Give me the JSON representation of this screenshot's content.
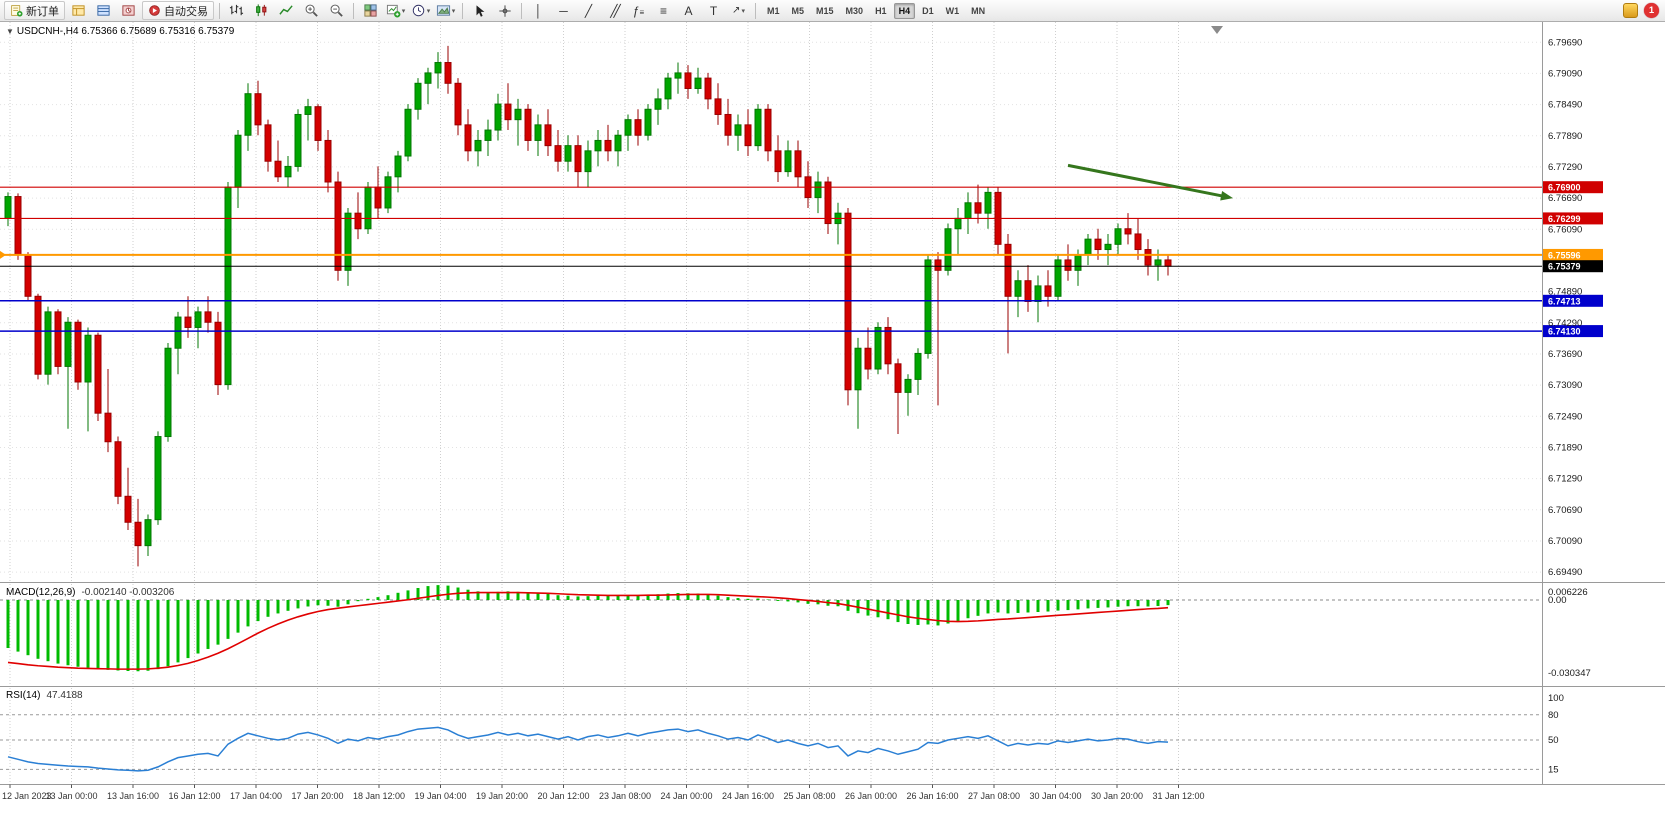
{
  "window": {
    "badge_count": "1"
  },
  "toolbar": {
    "new_order_label": "新订单",
    "auto_trading_label": "自动交易",
    "timeframes": [
      "M1",
      "M5",
      "M15",
      "M30",
      "H1",
      "H4",
      "D1",
      "W1",
      "MN"
    ],
    "active_timeframe": "H4"
  },
  "main_chart": {
    "symbol_header": "USDCNH-,H4  6.75366 6.75689 6.75316 6.75379"
  },
  "macd": {
    "label": "MACD(12,26,9)",
    "values": "-0.002140 -0.003206"
  },
  "rsi": {
    "label": "RSI(14)",
    "value": "47.4188"
  },
  "chart_data": {
    "type": "candlestick",
    "symbol": "USDCNH-,H4",
    "ohlc_header": {
      "open": "6.75366",
      "high": "6.75689",
      "low": "6.75316",
      "close": "6.75379"
    },
    "price_view": {
      "top": 6.8008,
      "bottom": 6.693
    },
    "colors": {
      "up": "#00a600",
      "up_stroke": "#047704",
      "down": "#d40000",
      "down_stroke": "#990000",
      "macd_hist": "#00bb00",
      "macd_signal": "#e00000",
      "rsi_line": "#2a7fd4",
      "level_red": "#d00000",
      "level_orange": "#ff9900",
      "level_blue": "#0000cc",
      "bid_black": "#000000",
      "arrow_green": "#35761d"
    },
    "price_axis_labels": [
      "6.79690",
      "6.79090",
      "6.78490",
      "6.77890",
      "6.77290",
      "6.76690",
      "6.76090",
      "6.74890",
      "6.74290",
      "6.73690",
      "6.73090",
      "6.72490",
      "6.71890",
      "6.71290",
      "6.70690",
      "6.70090",
      "6.69490"
    ],
    "time_axis_labels": [
      "12 Jan 2023",
      "13 Jan 00:00",
      "13 Jan 16:00",
      "16 Jan 12:00",
      "17 Jan 04:00",
      "17 Jan 20:00",
      "18 Jan 12:00",
      "19 Jan 04:00",
      "19 Jan 20:00",
      "20 Jan 12:00",
      "23 Jan 08:00",
      "24 Jan 00:00",
      "24 Jan 16:00",
      "25 Jan 08:00",
      "26 Jan 00:00",
      "26 Jan 16:00",
      "27 Jan 08:00",
      "30 Jan 04:00",
      "30 Jan 20:00",
      "31 Jan 12:00"
    ],
    "levels": [
      {
        "price": 6.769,
        "label": "6.76900",
        "color": "#d00000",
        "width": 1.2
      },
      {
        "price": 6.76299,
        "label": "6.76299",
        "color": "#d00000",
        "width": 1.2
      },
      {
        "price": 6.75596,
        "label": "6.75596",
        "color": "#ff9900",
        "width": 2,
        "left_marker": true
      },
      {
        "price": 6.75379,
        "label": "6.75379",
        "color": "#000000",
        "width": 1,
        "is_bid": true
      },
      {
        "price": 6.74713,
        "label": "6.74713",
        "color": "#0000cc",
        "width": 1.5
      },
      {
        "price": 6.7413,
        "label": "6.74130",
        "color": "#0000cc",
        "width": 1.5
      }
    ],
    "bid_price": 6.75379,
    "candles": [
      [
        6.763,
        6.768,
        6.7615,
        6.7672
      ],
      [
        6.7672,
        6.7678,
        6.755,
        6.756
      ],
      [
        6.756,
        6.7565,
        6.747,
        6.748
      ],
      [
        6.748,
        6.7485,
        6.732,
        6.733
      ],
      [
        6.733,
        6.746,
        6.731,
        6.745
      ],
      [
        6.745,
        6.7455,
        6.733,
        6.7345
      ],
      [
        6.7345,
        6.744,
        6.7225,
        6.743
      ],
      [
        6.743,
        6.7435,
        6.73,
        6.7315
      ],
      [
        6.7315,
        6.742,
        6.722,
        6.7405
      ],
      [
        6.7405,
        6.741,
        6.724,
        6.7255
      ],
      [
        6.7255,
        6.734,
        6.718,
        6.72
      ],
      [
        6.72,
        6.721,
        6.708,
        6.7095
      ],
      [
        6.7095,
        6.715,
        6.703,
        6.7045
      ],
      [
        6.7045,
        6.709,
        6.696,
        6.7
      ],
      [
        6.7,
        6.706,
        6.698,
        6.705
      ],
      [
        6.705,
        6.722,
        6.704,
        6.721
      ],
      [
        6.721,
        6.739,
        6.72,
        6.738
      ],
      [
        6.738,
        6.745,
        6.733,
        6.744
      ],
      [
        6.744,
        6.748,
        6.74,
        6.742
      ],
      [
        6.742,
        6.746,
        6.738,
        6.745
      ],
      [
        6.745,
        6.748,
        6.741,
        6.743
      ],
      [
        6.743,
        6.745,
        6.729,
        6.731
      ],
      [
        6.731,
        6.77,
        6.73,
        6.769
      ],
      [
        6.769,
        6.78,
        6.765,
        6.779
      ],
      [
        6.779,
        6.789,
        6.776,
        6.787
      ],
      [
        6.787,
        6.7895,
        6.779,
        6.781
      ],
      [
        6.781,
        6.782,
        6.772,
        6.774
      ],
      [
        6.774,
        6.778,
        6.77,
        6.771
      ],
      [
        6.771,
        6.775,
        6.769,
        6.773
      ],
      [
        6.773,
        6.784,
        6.772,
        6.783
      ],
      [
        6.783,
        6.786,
        6.778,
        6.7845
      ],
      [
        6.7845,
        6.785,
        6.776,
        6.778
      ],
      [
        6.778,
        6.78,
        6.768,
        6.77
      ],
      [
        6.77,
        6.772,
        6.751,
        6.753
      ],
      [
        6.753,
        6.765,
        6.75,
        6.764
      ],
      [
        6.764,
        6.768,
        6.759,
        6.761
      ],
      [
        6.761,
        6.77,
        6.76,
        6.769
      ],
      [
        6.769,
        6.773,
        6.763,
        6.765
      ],
      [
        6.765,
        6.772,
        6.764,
        6.771
      ],
      [
        6.771,
        6.776,
        6.768,
        6.775
      ],
      [
        6.775,
        6.785,
        6.774,
        6.784
      ],
      [
        6.784,
        6.79,
        6.782,
        6.789
      ],
      [
        6.789,
        6.792,
        6.785,
        6.791
      ],
      [
        6.791,
        6.795,
        6.788,
        6.793
      ],
      [
        6.793,
        6.7962,
        6.787,
        6.789
      ],
      [
        6.789,
        6.79,
        6.779,
        6.781
      ],
      [
        6.781,
        6.784,
        6.774,
        6.776
      ],
      [
        6.776,
        6.78,
        6.773,
        6.778
      ],
      [
        6.778,
        6.782,
        6.775,
        6.78
      ],
      [
        6.78,
        6.787,
        6.778,
        6.785
      ],
      [
        6.785,
        6.789,
        6.78,
        6.782
      ],
      [
        6.782,
        6.786,
        6.777,
        6.784
      ],
      [
        6.784,
        6.785,
        6.776,
        6.778
      ],
      [
        6.778,
        6.783,
        6.775,
        6.781
      ],
      [
        6.781,
        6.784,
        6.775,
        6.777
      ],
      [
        6.777,
        6.78,
        6.772,
        6.774
      ],
      [
        6.774,
        6.779,
        6.772,
        6.777
      ],
      [
        6.777,
        6.779,
        6.769,
        6.772
      ],
      [
        6.772,
        6.778,
        6.769,
        6.776
      ],
      [
        6.776,
        6.78,
        6.773,
        6.778
      ],
      [
        6.778,
        6.781,
        6.774,
        6.776
      ],
      [
        6.776,
        6.78,
        6.773,
        6.779
      ],
      [
        6.779,
        6.783,
        6.776,
        6.782
      ],
      [
        6.782,
        6.784,
        6.777,
        6.779
      ],
      [
        6.779,
        6.785,
        6.778,
        6.784
      ],
      [
        6.784,
        6.788,
        6.781,
        6.786
      ],
      [
        6.786,
        6.791,
        6.784,
        6.79
      ],
      [
        6.79,
        6.793,
        6.787,
        6.791
      ],
      [
        6.791,
        6.7925,
        6.786,
        6.788
      ],
      [
        6.788,
        6.792,
        6.787,
        6.79
      ],
      [
        6.79,
        6.791,
        6.784,
        6.786
      ],
      [
        6.786,
        6.789,
        6.781,
        6.783
      ],
      [
        6.783,
        6.786,
        6.777,
        6.779
      ],
      [
        6.779,
        6.783,
        6.776,
        6.781
      ],
      [
        6.781,
        6.784,
        6.775,
        6.777
      ],
      [
        6.777,
        6.785,
        6.776,
        6.784
      ],
      [
        6.784,
        6.785,
        6.774,
        6.776
      ],
      [
        6.776,
        6.779,
        6.77,
        6.772
      ],
      [
        6.772,
        6.778,
        6.771,
        6.776
      ],
      [
        6.776,
        6.778,
        6.769,
        6.771
      ],
      [
        6.771,
        6.774,
        6.765,
        6.767
      ],
      [
        6.767,
        6.772,
        6.764,
        6.77
      ],
      [
        6.77,
        6.771,
        6.76,
        6.762
      ],
      [
        6.762,
        6.766,
        6.758,
        6.764
      ],
      [
        6.764,
        6.765,
        6.727,
        6.73
      ],
      [
        6.73,
        6.74,
        6.7225,
        6.738
      ],
      [
        6.738,
        6.742,
        6.732,
        6.734
      ],
      [
        6.734,
        6.743,
        6.733,
        6.742
      ],
      [
        6.742,
        6.744,
        6.733,
        6.735
      ],
      [
        6.735,
        6.736,
        6.7215,
        6.7295
      ],
      [
        6.7295,
        6.733,
        6.725,
        6.732
      ],
      [
        6.732,
        6.738,
        6.729,
        6.737
      ],
      [
        6.737,
        6.756,
        6.736,
        6.755
      ],
      [
        6.755,
        6.7565,
        6.727,
        6.753
      ],
      [
        6.753,
        6.762,
        6.752,
        6.761
      ],
      [
        6.761,
        6.765,
        6.756,
        6.763
      ],
      [
        6.763,
        6.768,
        6.76,
        6.766
      ],
      [
        6.766,
        6.7695,
        6.762,
        6.764
      ],
      [
        6.764,
        6.769,
        6.761,
        6.768
      ],
      [
        6.768,
        6.769,
        6.756,
        6.758
      ],
      [
        6.758,
        6.76,
        6.737,
        6.748
      ],
      [
        6.748,
        6.753,
        6.744,
        6.751
      ],
      [
        6.751,
        6.754,
        6.745,
        6.747
      ],
      [
        6.747,
        6.752,
        6.743,
        6.75
      ],
      [
        6.75,
        6.753,
        6.746,
        6.748
      ],
      [
        6.748,
        6.756,
        6.747,
        6.755
      ],
      [
        6.755,
        6.758,
        6.751,
        6.753
      ],
      [
        6.753,
        6.757,
        6.75,
        6.756
      ],
      [
        6.756,
        6.76,
        6.754,
        6.759
      ],
      [
        6.759,
        6.761,
        6.755,
        6.757
      ],
      [
        6.757,
        6.76,
        6.754,
        6.758
      ],
      [
        6.758,
        6.762,
        6.756,
        6.761
      ],
      [
        6.761,
        6.764,
        6.758,
        6.76
      ],
      [
        6.76,
        6.763,
        6.755,
        6.757
      ],
      [
        6.757,
        6.759,
        6.752,
        6.754
      ],
      [
        6.754,
        6.757,
        6.751,
        6.755
      ],
      [
        6.755,
        6.756,
        6.752,
        6.75379
      ]
    ],
    "macd": {
      "params": "12,26,9",
      "main_value": -0.00214,
      "signal_value": -0.003206,
      "scale": 0.001,
      "axis_labels": [
        {
          "text": "0.006226",
          "value": 6.226
        },
        {
          "text": "0.00",
          "value": 0
        },
        {
          "text": "-0.030347",
          "value": -30.347
        }
      ],
      "histogram": [
        -20,
        -21.5,
        -23,
        -24.5,
        -25.5,
        -26.5,
        -27.2,
        -27.8,
        -28.3,
        -28.8,
        -29.1,
        -29.4,
        -29.6,
        -29.7,
        -29.5,
        -28.8,
        -27.6,
        -26,
        -24.2,
        -22.3,
        -20.4,
        -18.6,
        -16.2,
        -13.6,
        -11,
        -8.8,
        -7,
        -5.6,
        -4.5,
        -3.5,
        -2.7,
        -2.2,
        -2.4,
        -2.8,
        -1.8,
        -0.5,
        0.5,
        1.2,
        2,
        3,
        4,
        5,
        5.8,
        6.2,
        6,
        5.2,
        4.3,
        3.6,
        3.2,
        3.4,
        3.6,
        3.4,
        3,
        2.8,
        2.5,
        2,
        1.8,
        1.5,
        1.6,
        1.8,
        1.7,
        1.8,
        2,
        2,
        2.2,
        2.4,
        2.7,
        2.9,
        2.8,
        2.7,
        2.3,
        1.8,
        1.2,
        0.8,
        0.5,
        0.6,
        0.2,
        -0.4,
        -0.6,
        -1,
        -1.6,
        -1.8,
        -2.4,
        -2.6,
        -4.5,
        -5.5,
        -6.5,
        -7.2,
        -8,
        -9.2,
        -10,
        -10.4,
        -10.2,
        -10.6,
        -9.8,
        -8.8,
        -7.6,
        -6.6,
        -5.6,
        -5.2,
        -5.6,
        -5.4,
        -5.2,
        -5,
        -4.8,
        -4.4,
        -4.2,
        -3.9,
        -3.5,
        -3.3,
        -3.1,
        -2.8,
        -2.6,
        -2.6,
        -2.7,
        -2.5,
        -2.14
      ],
      "signal": [
        -26,
        -26.5,
        -27,
        -27.4,
        -27.7,
        -28,
        -28.2,
        -28.4,
        -28.5,
        -28.6,
        -28.7,
        -28.8,
        -28.8,
        -28.8,
        -28.7,
        -28.4,
        -28,
        -27.3,
        -26.4,
        -25.2,
        -23.8,
        -22.2,
        -20.3,
        -18.2,
        -16,
        -13.8,
        -11.8,
        -10,
        -8.4,
        -7,
        -5.8,
        -4.8,
        -4,
        -3.4,
        -2.9,
        -2.4,
        -1.9,
        -1.4,
        -0.9,
        -0.4,
        0.1,
        0.7,
        1.3,
        1.9,
        2.4,
        2.8,
        3,
        3.1,
        3.1,
        3.1,
        3.1,
        3.1,
        3,
        2.9,
        2.8,
        2.6,
        2.4,
        2.2,
        2.1,
        2,
        1.9,
        1.9,
        1.9,
        1.9,
        2,
        2,
        2.1,
        2.2,
        2.3,
        2.3,
        2.3,
        2.2,
        2,
        1.8,
        1.6,
        1.4,
        1.2,
        0.9,
        0.6,
        0.2,
        -0.2,
        -0.6,
        -1.1,
        -1.5,
        -2.2,
        -3,
        -3.8,
        -4.6,
        -5.4,
        -6.2,
        -7,
        -7.6,
        -8.1,
        -8.6,
        -8.9,
        -9,
        -8.9,
        -8.7,
        -8.4,
        -8.1,
        -7.9,
        -7.6,
        -7.3,
        -7,
        -6.7,
        -6.4,
        -6.1,
        -5.8,
        -5.5,
        -5.2,
        -4.9,
        -4.6,
        -4.3,
        -4,
        -3.7,
        -3.5,
        -3.206
      ]
    },
    "rsi": {
      "period": 14,
      "value": 47.4188,
      "levels": [
        80,
        50,
        15
      ],
      "axis_labels": [
        {
          "text": "100",
          "value": 100
        },
        {
          "text": "80",
          "value": 80
        },
        {
          "text": "50",
          "value": 50
        },
        {
          "text": "15",
          "value": 15
        }
      ],
      "series": [
        30,
        27,
        24,
        22,
        21,
        20,
        19,
        18.5,
        18,
        16.5,
        15.5,
        14.5,
        14,
        13.2,
        14,
        18,
        24,
        29,
        31,
        33,
        34,
        31,
        45,
        52,
        58,
        55,
        52,
        50,
        52,
        57,
        59,
        56,
        52,
        46,
        51,
        49,
        53,
        51,
        54,
        56,
        60,
        63,
        64,
        65,
        62,
        56,
        52,
        54,
        56,
        59,
        56,
        58,
        55,
        57,
        54,
        51,
        54,
        50,
        54,
        56,
        53,
        55,
        58,
        55,
        58,
        60,
        62,
        63,
        60,
        62,
        58,
        55,
        51,
        53,
        50,
        56,
        52,
        47,
        50,
        46,
        43,
        46,
        41,
        43,
        31,
        37,
        35,
        40,
        37,
        33,
        36,
        39,
        47,
        46,
        50,
        52,
        54,
        52,
        55,
        49,
        43,
        46,
        44,
        46,
        45,
        49,
        47,
        49,
        51,
        49,
        50,
        52,
        51,
        48,
        46,
        48,
        47.4
      ]
    },
    "trend_arrow": {
      "x1_candle": 106,
      "x2_candle": 122.5,
      "y1_price": 6.7732,
      "y2_price": 6.7669,
      "color": "#35761d"
    }
  }
}
